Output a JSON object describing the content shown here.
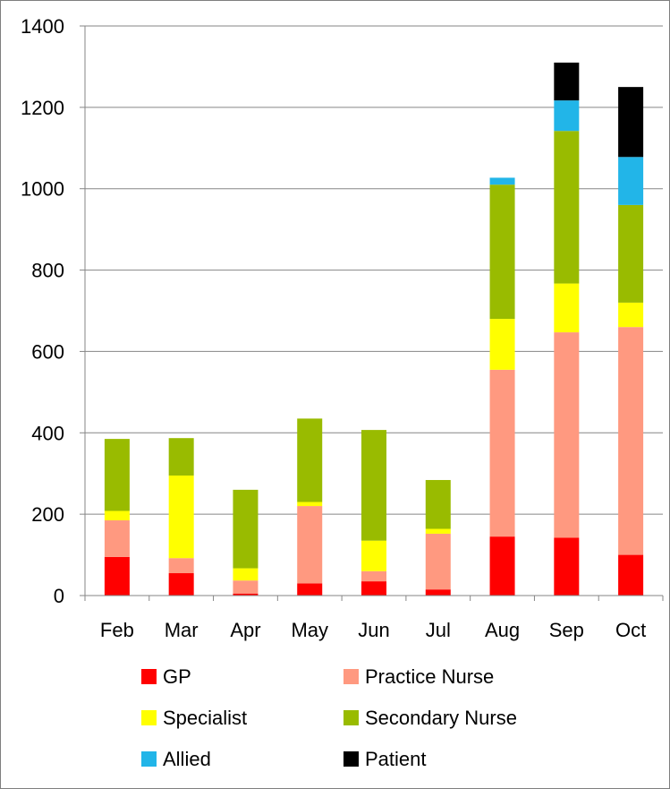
{
  "chart_data": {
    "type": "bar",
    "stacked": true,
    "title": "",
    "xlabel": "",
    "ylabel": "",
    "categories": [
      "Feb",
      "Mar",
      "Apr",
      "May",
      "Jun",
      "Jul",
      "Aug",
      "Sep",
      "Oct"
    ],
    "ylim": [
      0,
      1400
    ],
    "yticks": [
      0,
      200,
      400,
      600,
      800,
      1000,
      1200,
      1400
    ],
    "grid": true,
    "legend_position": "bottom",
    "series": [
      {
        "name": "GP",
        "color": "#ff0000",
        "values": [
          95,
          55,
          5,
          30,
          35,
          15,
          145,
          142,
          100
        ]
      },
      {
        "name": "Practice Nurse",
        "color": "#ff9980",
        "values": [
          90,
          37,
          32,
          190,
          25,
          137,
          410,
          505,
          560
        ]
      },
      {
        "name": "Specialist",
        "color": "#ffff00",
        "values": [
          23,
          203,
          30,
          10,
          75,
          12,
          125,
          120,
          60
        ]
      },
      {
        "name": "Secondary Nurse",
        "color": "#99bb00",
        "values": [
          177,
          92,
          193,
          205,
          272,
          120,
          330,
          375,
          240
        ]
      },
      {
        "name": "Allied",
        "color": "#22b5e8",
        "values": [
          0,
          0,
          0,
          0,
          0,
          0,
          17,
          75,
          118
        ]
      },
      {
        "name": "Patient",
        "color": "#000000",
        "values": [
          0,
          0,
          0,
          0,
          0,
          0,
          0,
          93,
          172
        ]
      }
    ]
  }
}
